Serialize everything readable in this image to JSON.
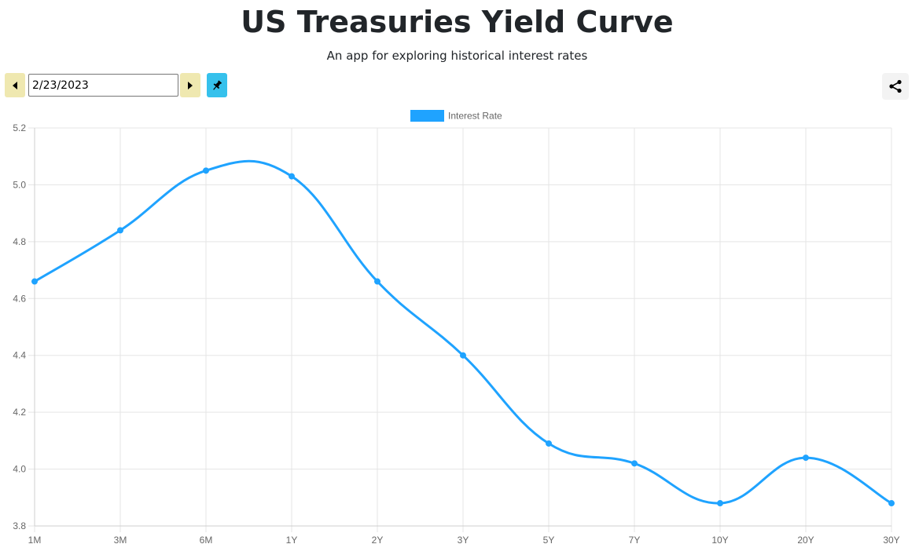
{
  "header": {
    "title": "US Treasuries Yield Curve",
    "subtitle": "An app for exploring historical interest rates"
  },
  "controls": {
    "date_value": "2/23/2023",
    "prev_icon": "triangle-left-icon",
    "next_icon": "triangle-right-icon",
    "pin_icon": "pin-icon",
    "share_icon": "share-icon"
  },
  "colors": {
    "series": "#1fa3ff",
    "nav_button": "#efe8b0",
    "pin_button": "#36c1ec",
    "grid": "#e5e5e5"
  },
  "chart_data": {
    "type": "line",
    "categories": [
      "1M",
      "3M",
      "6M",
      "1Y",
      "2Y",
      "3Y",
      "5Y",
      "7Y",
      "10Y",
      "20Y",
      "30Y"
    ],
    "series": [
      {
        "name": "Interest Rate",
        "values": [
          4.66,
          4.84,
          5.05,
          5.03,
          4.66,
          4.4,
          4.09,
          4.02,
          3.88,
          4.04,
          3.88
        ]
      }
    ],
    "ylim": [
      3.8,
      5.2
    ],
    "yticks": [
      "5.2",
      "5.0",
      "4.8",
      "4.6",
      "4.4",
      "4.2",
      "4.0",
      "3.8"
    ],
    "grid": true,
    "legend": "top-center",
    "smooth": true
  }
}
